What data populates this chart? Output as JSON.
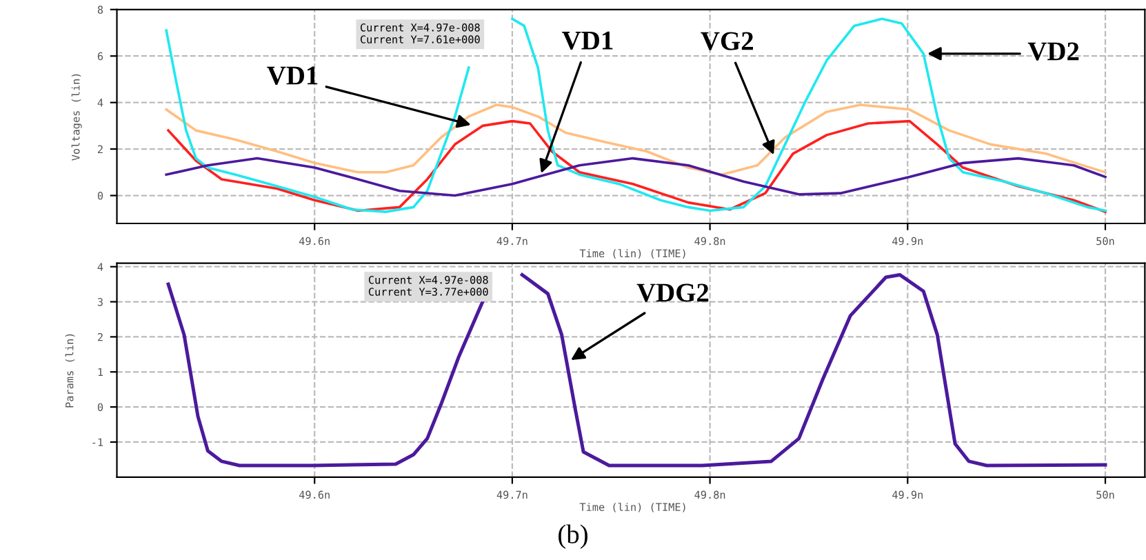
{
  "chart_data": [
    {
      "type": "line",
      "xlabel": "Time (lin) (TIME)",
      "ylabel": "Voltages (lin)",
      "xlim": [
        49.5,
        50.02
      ],
      "xticks": [
        {
          "value": 49.6,
          "label": "49.6n"
        },
        {
          "value": 49.7,
          "label": "49.7n"
        },
        {
          "value": 49.8,
          "label": "49.8n"
        },
        {
          "value": 49.9,
          "label": "49.9n"
        },
        {
          "value": 50,
          "label": "50n"
        }
      ],
      "ylim": [
        -1.2,
        8
      ],
      "yticks": [
        0,
        2,
        4,
        6,
        8
      ],
      "grid": true,
      "line_style": "solid",
      "series": [
        {
          "color": "#ffbf80",
          "x": [
            49.525,
            49.54,
            49.56,
            49.581,
            49.6,
            49.622,
            49.636,
            49.65,
            49.664,
            49.678,
            49.692,
            49.7,
            49.713,
            49.727,
            49.747,
            49.768,
            49.789,
            49.806,
            49.824,
            49.838,
            49.859,
            49.876,
            49.901,
            49.921,
            49.942,
            49.97,
            50.0
          ],
          "values": [
            3.7,
            2.8,
            2.4,
            1.9,
            1.4,
            1.0,
            1.0,
            1.3,
            2.5,
            3.4,
            3.9,
            3.8,
            3.4,
            2.7,
            2.3,
            1.9,
            1.2,
            0.9,
            1.3,
            2.5,
            3.6,
            3.9,
            3.7,
            2.8,
            2.2,
            1.8,
            1.0
          ]
        },
        {
          "color": "#ff2020",
          "x": [
            49.526,
            49.54,
            49.553,
            49.581,
            49.6,
            49.622,
            49.643,
            49.657,
            49.671,
            49.685,
            49.7,
            49.709,
            49.72,
            49.734,
            49.761,
            49.789,
            49.81,
            49.828,
            49.842,
            49.859,
            49.88,
            49.901,
            49.915,
            49.928,
            49.956,
            49.984,
            50.0
          ],
          "values": [
            2.8,
            1.5,
            0.7,
            0.3,
            -0.2,
            -0.65,
            -0.5,
            0.7,
            2.2,
            3.0,
            3.2,
            3.1,
            1.9,
            1.0,
            0.5,
            -0.3,
            -0.6,
            0.1,
            1.8,
            2.6,
            3.1,
            3.2,
            2.2,
            1.2,
            0.4,
            -0.2,
            -0.7
          ]
        },
        {
          "color": "#20e8f0",
          "x": [
            49.525,
            49.53,
            49.535,
            49.54,
            49.546,
            49.56,
            49.581,
            49.6,
            49.619,
            49.636,
            49.65,
            49.657,
            49.664,
            49.671,
            49.678,
            49.685,
            49.693,
            49.7,
            49.706,
            49.713,
            49.718,
            49.723,
            49.734,
            49.754,
            49.775,
            49.789,
            49.8,
            49.817,
            49.828,
            49.838,
            49.848,
            49.859,
            49.873,
            49.887,
            49.897,
            49.908,
            49.915,
            49.921,
            49.928,
            49.949,
            49.97,
            49.991,
            50.0
          ],
          "values": [
            7.1,
            4.9,
            2.8,
            1.6,
            1.2,
            0.9,
            0.4,
            -0.06,
            -0.6,
            -0.7,
            -0.5,
            0.2,
            1.8,
            3.4,
            5.5,
            null,
            null,
            7.6,
            7.3,
            5.5,
            2.8,
            1.3,
            0.9,
            0.5,
            -0.2,
            -0.5,
            -0.65,
            -0.5,
            0.4,
            2.2,
            4.0,
            5.8,
            7.3,
            7.6,
            7.4,
            6.1,
            3.4,
            1.6,
            1.0,
            0.6,
            0.1,
            -0.5,
            -0.65
          ]
        },
        {
          "color": "#4b1a9c",
          "x": [
            49.525,
            49.546,
            49.571,
            49.6,
            49.622,
            49.643,
            49.671,
            49.7,
            49.734,
            49.761,
            49.789,
            49.817,
            49.845,
            49.866,
            49.901,
            49.928,
            49.956,
            49.984,
            50.0
          ],
          "values": [
            0.9,
            1.3,
            1.6,
            1.2,
            0.7,
            0.2,
            0.0,
            0.5,
            1.3,
            1.6,
            1.3,
            0.6,
            0.05,
            0.1,
            0.8,
            1.4,
            1.6,
            1.3,
            0.8
          ]
        }
      ],
      "annotations": [
        {
          "text": "VD1",
          "x": 49.681,
          "y": 3.0
        },
        {
          "text": "VD1",
          "x": 49.714,
          "y": 0.8
        },
        {
          "text": "VG2",
          "x": 49.833,
          "y": 1.6
        },
        {
          "text": "VD2",
          "x": 49.908,
          "y": 6.1
        },
        "Current X=4.97e-008\nCurrent Y=7.61e+000"
      ]
    },
    {
      "type": "line",
      "xlabel": "Time (lin) (TIME)",
      "ylabel": "Params (lin)",
      "xlim": [
        49.5,
        50.02
      ],
      "xticks": [
        {
          "value": 49.6,
          "label": "49.6n"
        },
        {
          "value": 49.7,
          "label": "49.7n"
        },
        {
          "value": 49.8,
          "label": "49.8n"
        },
        {
          "value": 49.9,
          "label": "49.9n"
        },
        {
          "value": 50,
          "label": "50n"
        }
      ],
      "ylim": [
        -2,
        4.1
      ],
      "yticks": [
        -1,
        0,
        1,
        2,
        3,
        4
      ],
      "grid": true,
      "line_style": "solid",
      "series": [
        {
          "color": "#4b1a9c",
          "x": [
            49.526,
            49.534,
            49.541,
            49.546,
            49.553,
            49.562,
            49.599,
            49.641,
            49.65,
            49.657,
            49.664,
            49.673,
            49.685,
            49.697,
            49.705,
            49.718,
            49.725,
            49.732,
            49.736,
            49.749,
            49.796,
            49.831,
            49.845,
            49.857,
            49.871,
            49.889,
            49.896,
            49.908,
            49.915,
            49.924,
            49.931,
            49.94,
            50.0
          ],
          "values": [
            3.5,
            2.06,
            -0.27,
            -1.25,
            -1.55,
            -1.67,
            -1.67,
            -1.63,
            -1.36,
            -0.9,
            0.08,
            1.44,
            3.0,
            null,
            3.77,
            3.23,
            2.06,
            -0.1,
            -1.28,
            -1.67,
            -1.67,
            -1.55,
            -0.9,
            0.78,
            2.6,
            3.7,
            3.77,
            3.3,
            2.06,
            -1.05,
            -1.55,
            -1.67,
            -1.65
          ]
        }
      ],
      "annotations": [
        {
          "text": "VDG2",
          "x": 49.728,
          "y": 1.28
        },
        "Current X=4.97e-008\nCurrent Y=3.77e+000",
        "(b)"
      ]
    }
  ]
}
